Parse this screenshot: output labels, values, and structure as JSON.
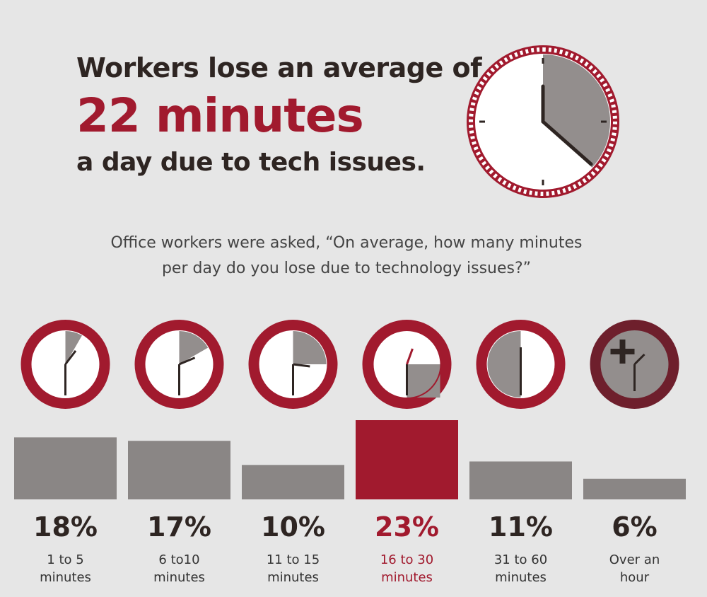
{
  "headline": {
    "line1": "Workers lose an average of",
    "highlight": "22 minutes",
    "line3": "a day due to tech issues."
  },
  "question": {
    "line1": "Office workers were asked, “On average, how many minutes",
    "line2": "per day do you lose due to technology issues?”"
  },
  "colors": {
    "accent": "#a11a2e",
    "bar": "#8a8685",
    "text": "#2e2522",
    "background": "#e6e6e6"
  },
  "clock_icons": [
    "clock-icon",
    "clock-icon",
    "clock-icon",
    "clock-icon",
    "clock-icon",
    "plus-clock-icon"
  ],
  "chart_data": {
    "type": "bar",
    "categories": [
      "1 to 5 minutes",
      "6 to10 minutes",
      "11 to 15 minutes",
      "16 to 30 minutes",
      "31 to 60 minutes",
      "Over an hour"
    ],
    "category_lines": [
      [
        "1 to 5",
        "minutes"
      ],
      [
        "6 to10",
        "minutes"
      ],
      [
        "11 to 15",
        "minutes"
      ],
      [
        "16 to 30",
        "minutes"
      ],
      [
        "31 to 60",
        "minutes"
      ],
      [
        "Over an",
        "hour"
      ]
    ],
    "values": [
      18,
      17,
      10,
      23,
      11,
      6
    ],
    "value_labels": [
      "18%",
      "17%",
      "10%",
      "23%",
      "11%",
      "6%"
    ],
    "highlight_index": 3,
    "ylim": [
      0,
      23
    ]
  }
}
